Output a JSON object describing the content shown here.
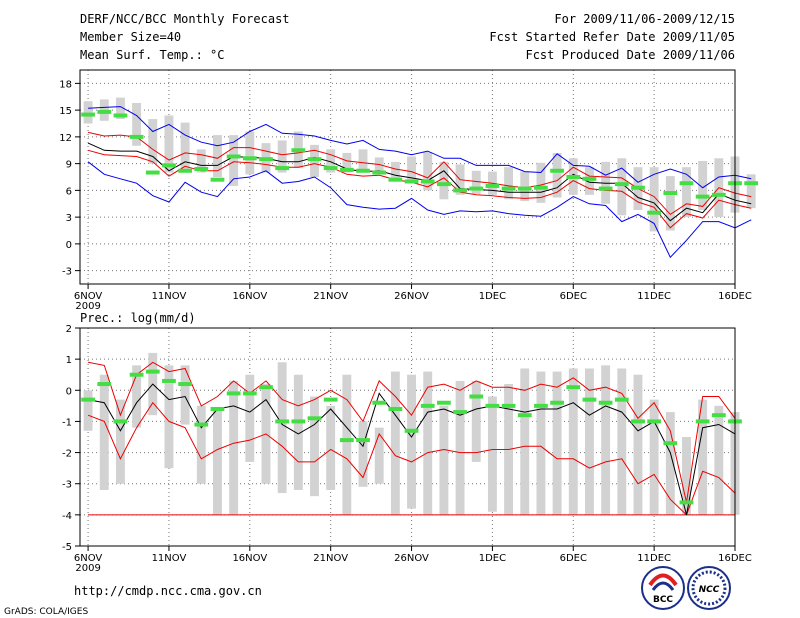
{
  "header": {
    "title": "DERF/NCC/BCC Monthly Forecast",
    "member_size": "Member Size=40",
    "variable": "Mean Surf. Temp.: °C",
    "period": "For 2009/11/06-2009/12/15",
    "started": "Fcst Started Refer Date 2009/11/05",
    "produced": "Fcst Produced Date 2009/11/06"
  },
  "footer": {
    "url": "http://cmdp.ncc.cma.gov.cn",
    "grads": "GrADS: COLA/IGES",
    "logo_bcc": "BCC",
    "logo_ncc": "NCC"
  },
  "colors": {
    "box": "#d2d2d2",
    "median": "#44dd44",
    "mean": "#000000",
    "upper": "#0000ee",
    "lower": "#ee0000",
    "grid": "#777777"
  },
  "chart_data": [
    {
      "type": "line",
      "title": "Mean Surf. Temp.: °C",
      "xlabel": "",
      "ylabel": "°C",
      "ylim": [
        -4.5,
        19.5
      ],
      "yticks": [
        -3,
        0,
        3,
        6,
        9,
        12,
        15,
        18
      ],
      "x_tick_labels": [
        "6NOV",
        "11NOV",
        "16NOV",
        "21NOV",
        "26NOV",
        "1DEC",
        "6DEC",
        "11DEC",
        "16DEC"
      ],
      "x_year_label": "2009",
      "days": 40,
      "x_range": [
        -0.5,
        40
      ],
      "grid": true,
      "series": [
        {
          "name": "box_low",
          "values": [
            13.5,
            13.8,
            14,
            11,
            9,
            8,
            8,
            8,
            7.5,
            6.5,
            7.8,
            8,
            8,
            8.5,
            7.5,
            8,
            8,
            8,
            8,
            7.2,
            7,
            6,
            5,
            5.5,
            5.6,
            5.5,
            5,
            4.8,
            4.6,
            5.2,
            5.5,
            5.5,
            4.5,
            3.2,
            3.8,
            1.4,
            1.5,
            3,
            3.8,
            3,
            3.5,
            4
          ]
        },
        {
          "name": "box_high",
          "values": [
            16,
            16.2,
            16.4,
            15.8,
            14,
            14.4,
            13.6,
            10.6,
            12.2,
            12.2,
            12.6,
            11.3,
            11.6,
            12.6,
            11.1,
            10.6,
            10.2,
            10.6,
            9.7,
            9.2,
            9.8,
            10.3,
            9.2,
            8.9,
            8.2,
            8.1,
            8.6,
            8.1,
            9.1,
            10.2,
            9.6,
            8.6,
            9.2,
            9.6,
            8.6,
            8.6,
            7.6,
            8.6,
            9.3,
            9.6,
            9.8,
            7.8
          ]
        },
        {
          "name": "median",
          "values": [
            14.5,
            14.8,
            14.4,
            12,
            8,
            8.8,
            8.2,
            8.4,
            7.2,
            9.8,
            9.6,
            9.5,
            8.5,
            10.5,
            9.5,
            8.5,
            8.3,
            8.2,
            8,
            7.2,
            7,
            7,
            6.7,
            6,
            6.2,
            6.5,
            6.2,
            6.2,
            6.3,
            8.2,
            7.5,
            7.3,
            6.2,
            6.7,
            6.3,
            3.5,
            5.7,
            6.8,
            5.3,
            5.5,
            6.8,
            6.8
          ]
        },
        {
          "name": "mean",
          "values": [
            11.3,
            10.5,
            10.4,
            10.4,
            9.8,
            8.2,
            9.2,
            8.8,
            8.8,
            9.8,
            9.7,
            9.6,
            9.2,
            9.2,
            9.7,
            9.2,
            8.4,
            8.1,
            8.2,
            7.7,
            7.4,
            7.1,
            8.2,
            6.2,
            6.1,
            6,
            5.8,
            5.8,
            5.8,
            6.3,
            7.8,
            6.9,
            6.8,
            6.8,
            5.2,
            4.6,
            2.6,
            4,
            3.5,
            5.6,
            4.9,
            4.5
          ]
        },
        {
          "name": "upper",
          "values": [
            12.5,
            12.1,
            12.2,
            12,
            10.6,
            9.4,
            10.2,
            10,
            9.6,
            10.8,
            10.8,
            10.4,
            10,
            10.2,
            10.5,
            10,
            9.3,
            9.1,
            8.9,
            8.4,
            8.1,
            7.4,
            9.2,
            7.2,
            7,
            6.8,
            6.5,
            6.3,
            6.6,
            7.1,
            8.6,
            7.6,
            7.5,
            7.4,
            6.2,
            5.3,
            3.3,
            4.5,
            4.2,
            6.3,
            5.7,
            5.3
          ]
        },
        {
          "name": "lower",
          "values": [
            10.5,
            10,
            9.9,
            9.8,
            9.2,
            7.6,
            8.7,
            8.2,
            8.2,
            9.2,
            9.1,
            8.9,
            8.6,
            8.6,
            9,
            8.6,
            7.8,
            7.6,
            7.7,
            7.2,
            6.9,
            6.4,
            7.4,
            5.8,
            5.5,
            5.4,
            5.2,
            5.1,
            5.2,
            5.8,
            7.1,
            6.2,
            6,
            5.9,
            4.7,
            4.1,
            1.8,
            3.4,
            2.9,
            4.9,
            4.4,
            4
          ]
        },
        {
          "name": "max",
          "values": [
            15.2,
            15.3,
            15.4,
            14.4,
            12.6,
            13.4,
            12.2,
            11.4,
            11,
            11.4,
            12.6,
            13.4,
            12.4,
            12.3,
            12.1,
            11.6,
            11.2,
            11.6,
            10.6,
            10.4,
            10,
            10.4,
            9.6,
            9.6,
            8.8,
            8.8,
            8.8,
            8.1,
            8,
            10.1,
            8.8,
            8.7,
            7.7,
            8.5,
            6.9,
            7.8,
            8.4,
            7.8,
            6.3,
            7.5,
            7.7,
            7.3
          ]
        },
        {
          "name": "min",
          "values": [
            9.2,
            7.8,
            7.3,
            6.8,
            5.4,
            4.7,
            6.9,
            5.8,
            5.3,
            7.3,
            7.5,
            8.2,
            6.8,
            7,
            7.5,
            6.3,
            4.4,
            4.1,
            3.9,
            4,
            5.1,
            3.8,
            3.3,
            3.7,
            3.6,
            3.7,
            3.4,
            3.2,
            3.1,
            4.1,
            5.3,
            4.5,
            4.3,
            2.5,
            3.3,
            2.3,
            -1.5,
            0.4,
            2.5,
            2.5,
            1.8,
            2.7
          ]
        }
      ]
    },
    {
      "type": "line",
      "title": "Prec.: log(mm/d)",
      "xlabel": "",
      "ylabel": "log(mm/d)",
      "ylim": [
        -5,
        2
      ],
      "yticks": [
        -5,
        -4,
        -3,
        -2,
        -1,
        0,
        1,
        2
      ],
      "x_tick_labels": [
        "6NOV",
        "11NOV",
        "16NOV",
        "21NOV",
        "26NOV",
        "1DEC",
        "6DEC",
        "11DEC",
        "16DEC"
      ],
      "x_year_label": "2009",
      "days": 40,
      "x_range": [
        -0.5,
        40
      ],
      "grid": true,
      "series": [
        {
          "name": "box_low",
          "values": [
            -1.3,
            -3.2,
            -3,
            -1.2,
            -0.8,
            -2.5,
            -1.1,
            -3,
            -4,
            -4,
            -2.3,
            -3,
            -3.3,
            -3.2,
            -3.4,
            -3.2,
            -4,
            -3.1,
            -3,
            -4,
            -3.8,
            -4,
            -4,
            -4,
            -2.3,
            -3.9,
            -4,
            -4,
            -4,
            -4,
            -4,
            -4,
            -4,
            -4,
            -4,
            -4,
            -4,
            -4,
            -4,
            -4,
            -4
          ]
        },
        {
          "name": "box_high",
          "values": [
            0,
            0.5,
            -0.3,
            0.8,
            1.2,
            0.8,
            0.8,
            -0.5,
            -0.6,
            0.3,
            0.5,
            0.2,
            0.9,
            0.5,
            -0.2,
            -0.5,
            0.5,
            -1,
            -1.2,
            0.6,
            0.5,
            0.6,
            -0.5,
            0.3,
            0.3,
            -0.2,
            0.2,
            0.7,
            0.6,
            0.6,
            0.7,
            0.7,
            0.8,
            0.7,
            0.5,
            -0.3,
            -0.7,
            -1.5,
            -0.3,
            -0.5,
            -0.7
          ]
        },
        {
          "name": "median",
          "values": [
            -0.3,
            0.2,
            -1,
            0.5,
            0.6,
            0.3,
            0.2,
            -1.1,
            -0.6,
            -0.1,
            -0.1,
            0.1,
            -1,
            -1,
            -0.9,
            -0.3,
            -1.6,
            -1.6,
            -0.4,
            -0.6,
            -1.3,
            -0.5,
            -0.4,
            -0.7,
            -0.2,
            -0.5,
            -0.5,
            -0.8,
            -0.5,
            -0.4,
            0.1,
            -0.3,
            -0.4,
            -0.3,
            -1,
            -1,
            -1.7,
            -3.6,
            -1,
            -0.8,
            -1
          ]
        },
        {
          "name": "mean",
          "values": [
            -0.3,
            -0.4,
            -1.3,
            -0.4,
            0.2,
            -0.3,
            -0.2,
            -1.2,
            -0.6,
            -0.5,
            -0.7,
            -0.3,
            -1.1,
            -1.4,
            -1.1,
            -0.6,
            -1.2,
            -1.8,
            -0.1,
            -0.8,
            -1.5,
            -0.7,
            -0.6,
            -0.8,
            -0.6,
            -0.5,
            -0.6,
            -0.7,
            -0.6,
            -0.6,
            -0.4,
            -0.8,
            -0.5,
            -0.7,
            -1.3,
            -1,
            -2,
            -4,
            -1.2,
            -1.1,
            -1.4
          ]
        },
        {
          "name": "upper",
          "values": [
            0.9,
            0.8,
            -0.8,
            0.5,
            0.9,
            0.6,
            0.7,
            -0.5,
            -0.2,
            0.3,
            -0.1,
            0.3,
            -0.3,
            -0.5,
            -0.3,
            0,
            -0.3,
            -1,
            0.3,
            -0.2,
            -0.8,
            0.1,
            0.2,
            0,
            0.3,
            0.1,
            0.1,
            0,
            0.2,
            0.1,
            0.4,
            0,
            0.1,
            -0.1,
            -0.9,
            -0.4,
            -1.3,
            -3.6,
            -0.2,
            -0.2,
            -0.9
          ]
        },
        {
          "name": "lower",
          "values": [
            -0.8,
            -1,
            -2.2,
            -1.2,
            -0.4,
            -1,
            -1.2,
            -2.2,
            -1.9,
            -1.7,
            -1.6,
            -1.4,
            -1.8,
            -2.3,
            -2.3,
            -1.9,
            -2.2,
            -2.8,
            -1.4,
            -2.1,
            -2.3,
            -2,
            -1.9,
            -2,
            -2,
            -1.9,
            -1.9,
            -1.8,
            -1.8,
            -2.2,
            -2.2,
            -2.5,
            -2.3,
            -2.2,
            -3,
            -2.7,
            -3.5,
            -4,
            -2.6,
            -2.8,
            -3.3
          ]
        },
        {
          "name": "floor",
          "values": [
            -4,
            -4,
            -4,
            -4,
            -4,
            -4,
            -4,
            -4,
            -4,
            -4,
            -4,
            -4,
            -4,
            -4,
            -4,
            -4,
            -4,
            -4,
            -4,
            -4,
            -4,
            -4,
            -4,
            -4,
            -4,
            -4,
            -4,
            -4,
            -4,
            -4,
            -4,
            -4,
            -4,
            -4,
            -4,
            -4,
            -4,
            -4,
            -4,
            -4,
            -4
          ]
        }
      ]
    }
  ]
}
